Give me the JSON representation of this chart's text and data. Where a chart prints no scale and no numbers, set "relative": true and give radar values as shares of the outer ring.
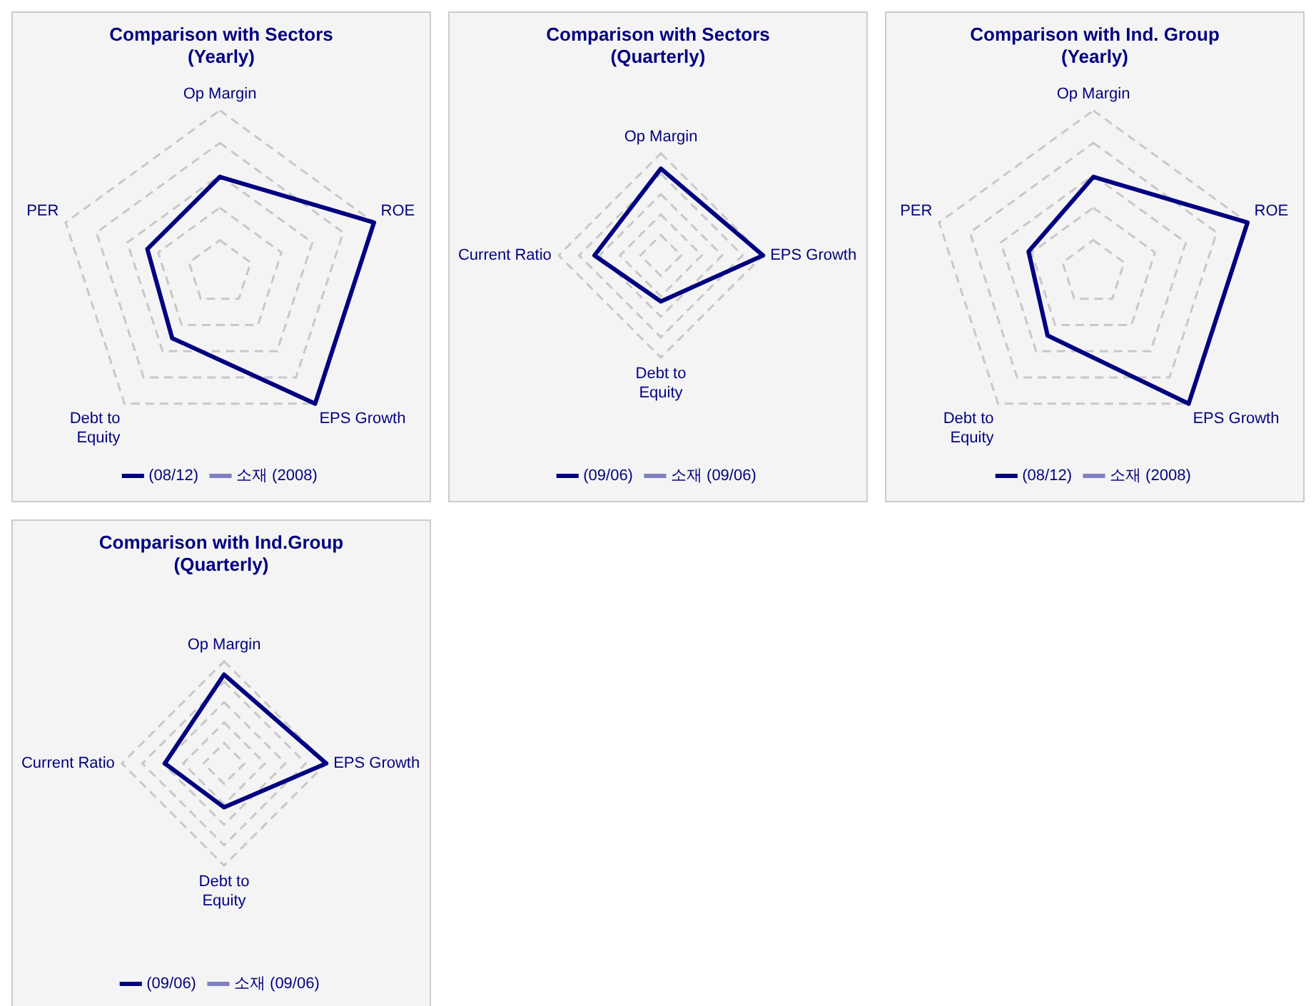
{
  "chart_data": [
    {
      "type": "radar",
      "title": "Comparison with Sectors (Yearly)",
      "categories": [
        "Op Margin",
        "ROE",
        "EPS Growth",
        "Debt to Equity",
        "PER"
      ],
      "relative": true,
      "grid": true,
      "legend": "bottom",
      "series": [
        {
          "name": "(08/12)",
          "color": "#000080",
          "values": [
            0.59,
            1,
            1,
            0.5,
            0.47
          ]
        },
        {
          "name": "소재 (2008)",
          "values": [
            null,
            null,
            null,
            null,
            null
          ]
        }
      ]
    },
    {
      "type": "radar",
      "title": "Comparison with Sectors (Quarterly)",
      "categories": [
        "Op Margin",
        "EPS Growth",
        "Debt to Equity",
        "Current Ratio"
      ],
      "relative": true,
      "grid": true,
      "legend": "bottom",
      "series": [
        {
          "name": "(09/06)",
          "color": "#000080",
          "values": [
            0.85,
            1,
            0.45,
            0.65
          ]
        },
        {
          "name": "소재 (09/06)",
          "values": [
            null,
            null,
            null,
            null
          ]
        }
      ]
    },
    {
      "type": "radar",
      "title": "Comparison with Ind. Group (Yearly)",
      "categories": [
        "Op Margin",
        "ROE",
        "EPS Growth",
        "Debt to Equity",
        "PER"
      ],
      "relative": true,
      "grid": true,
      "legend": "bottom",
      "series": [
        {
          "name": "(08/12)",
          "color": "#000080",
          "values": [
            0.59,
            1,
            1,
            0.48,
            0.42
          ]
        },
        {
          "name": "소재 (2008)",
          "values": [
            null,
            null,
            null,
            null,
            null
          ]
        }
      ]
    },
    {
      "type": "radar",
      "title": "Comparison with Ind.Group (Quarterly)",
      "categories": [
        "Op Margin",
        "EPS Growth",
        "Debt to Equity",
        "Current Ratio"
      ],
      "relative": true,
      "grid": true,
      "legend": "bottom",
      "series": [
        {
          "name": "(09/06)",
          "color": "#000080",
          "values": [
            0.87,
            1,
            0.43,
            0.58
          ]
        },
        {
          "name": "소재 (09/06)",
          "values": [
            null,
            null,
            null,
            null
          ]
        }
      ]
    }
  ]
}
